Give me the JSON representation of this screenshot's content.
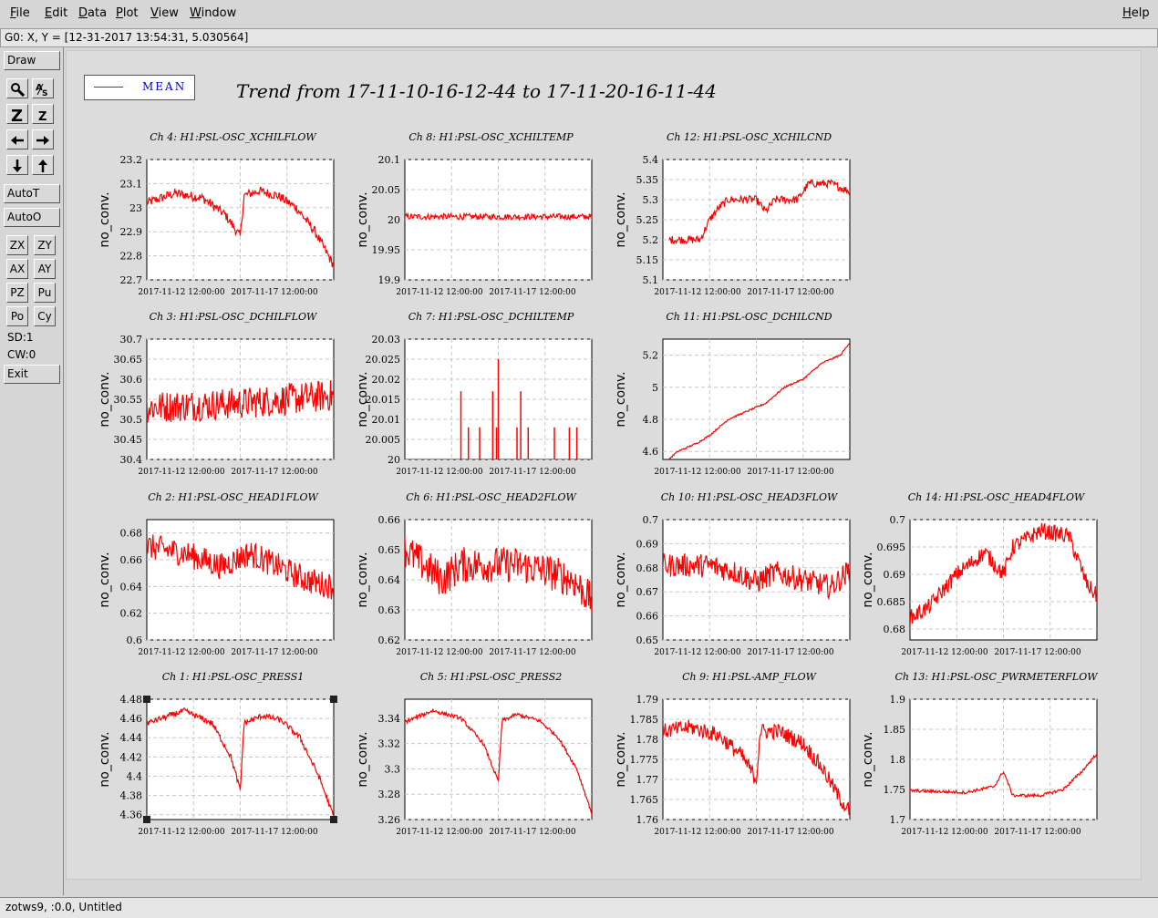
{
  "menu": {
    "items": [
      "File",
      "Edit",
      "Data",
      "Plot",
      "View",
      "Window"
    ],
    "help": "Help"
  },
  "coord_readout": "G0: X, Y = [12-31-2017 13:54:31, 5.030564]",
  "toolbar": {
    "draw": "Draw",
    "autot": "AutoT",
    "autoo": "AutoO",
    "small": [
      "ZX",
      "ZY",
      "AX",
      "AY",
      "PZ",
      "Pu",
      "Po",
      "Cy"
    ],
    "sd": "SD:1",
    "cw": "CW:0",
    "exit": "Exit"
  },
  "legend": {
    "label": "MEAN",
    "color": "#ff0000"
  },
  "title": "Trend from 17-11-10-16-12-44 to 17-11-20-16-11-44",
  "status": "zotws9, :0.0, Untitled",
  "x_ticks": [
    "2017-11-12 12:00:00",
    "2017-11-17 12:00:00"
  ],
  "chart_data": [
    {
      "type": "line",
      "title": "Ch 4: H1:PSL-OSC_XCHILFLOW",
      "ylabel": "no_conv.",
      "ylim": [
        22.7,
        23.2
      ],
      "yticks": [
        "23.2",
        "23.1",
        "23",
        "22.9",
        "22.8",
        "22.7"
      ],
      "points": [
        [
          0,
          23.02
        ],
        [
          0.15,
          23.06
        ],
        [
          0.3,
          23.04
        ],
        [
          0.42,
          22.97
        ],
        [
          0.5,
          22.88
        ],
        [
          0.52,
          23.05
        ],
        [
          0.6,
          23.07
        ],
        [
          0.7,
          23.05
        ],
        [
          0.8,
          23.0
        ],
        [
          0.9,
          22.9
        ],
        [
          1.0,
          22.76
        ]
      ],
      "band": 0.04
    },
    {
      "type": "line",
      "title": "Ch 8: H1:PSL-OSC_XCHILTEMP",
      "ylabel": "no_conv.",
      "ylim": [
        19.9,
        20.1
      ],
      "yticks": [
        "20.1",
        "20.05",
        "20",
        "19.95",
        "19.9"
      ],
      "points": [
        [
          0,
          20.005
        ],
        [
          0.5,
          20.005
        ],
        [
          1.0,
          20.005
        ]
      ],
      "band": 0.01
    },
    {
      "type": "line",
      "title": "Ch 12: H1:PSL-OSC_XCHILCND",
      "ylabel": "no_conv.",
      "ylim": [
        5.1,
        5.4
      ],
      "yticks": [
        "5.4",
        "5.35",
        "5.3",
        "5.25",
        "5.2",
        "5.15",
        "5.1"
      ],
      "points": [
        [
          0.03,
          5.2
        ],
        [
          0.2,
          5.2
        ],
        [
          0.25,
          5.25
        ],
        [
          0.3,
          5.28
        ],
        [
          0.35,
          5.3
        ],
        [
          0.5,
          5.3
        ],
        [
          0.55,
          5.27
        ],
        [
          0.6,
          5.3
        ],
        [
          0.72,
          5.3
        ],
        [
          0.78,
          5.34
        ],
        [
          0.9,
          5.34
        ],
        [
          1.0,
          5.32
        ]
      ],
      "band": 0.02
    },
    {
      "type": "line",
      "title": "Ch 3: H1:PSL-OSC_DCHILFLOW",
      "ylabel": "no_conv.",
      "ylim": [
        30.4,
        30.7
      ],
      "yticks": [
        "30.7",
        "30.65",
        "30.6",
        "30.55",
        "30.5",
        "30.45",
        "30.4"
      ],
      "points": [
        [
          0,
          30.53
        ],
        [
          0.5,
          30.54
        ],
        [
          1.0,
          30.56
        ]
      ],
      "band": 0.08
    },
    {
      "type": "line",
      "title": "Ch 7: H1:PSL-OSC_DCHILTEMP",
      "ylabel": "no_conv.",
      "ylim": [
        20,
        20.03
      ],
      "yticks": [
        "20.03",
        "20.025",
        "20.02",
        "20.015",
        "20.01",
        "20.005",
        "20"
      ],
      "points": [
        [
          0,
          20
        ],
        [
          1.0,
          20
        ]
      ],
      "band": 0.0,
      "spikes": [
        [
          0.3,
          20.017
        ],
        [
          0.34,
          20.008
        ],
        [
          0.4,
          20.008
        ],
        [
          0.47,
          20.017
        ],
        [
          0.49,
          20.008
        ],
        [
          0.5,
          20.025
        ],
        [
          0.6,
          20.008
        ],
        [
          0.62,
          20.017
        ],
        [
          0.66,
          20.008
        ],
        [
          0.8,
          20.008
        ],
        [
          0.88,
          20.008
        ],
        [
          0.92,
          20.008
        ]
      ]
    },
    {
      "type": "line",
      "title": "Ch 11: H1:PSL-OSC_DCHILCND",
      "ylabel": "no_conv.",
      "ylim": [
        4.55,
        5.3
      ],
      "yticks": [
        "5.2",
        "5",
        "4.8",
        "4.6"
      ],
      "points": [
        [
          0.03,
          4.55
        ],
        [
          0.08,
          4.6
        ],
        [
          0.18,
          4.65
        ],
        [
          0.25,
          4.7
        ],
        [
          0.35,
          4.8
        ],
        [
          0.45,
          4.85
        ],
        [
          0.55,
          4.9
        ],
        [
          0.65,
          5.0
        ],
        [
          0.75,
          5.05
        ],
        [
          0.85,
          5.15
        ],
        [
          0.95,
          5.2
        ],
        [
          1.0,
          5.28
        ]
      ],
      "band": 0.01
    },
    {
      "type": "line",
      "title": "Ch 2: H1:PSL-OSC_HEAD1FLOW",
      "ylabel": "no_conv.",
      "ylim": [
        0.6,
        0.69
      ],
      "yticks": [
        "0.68",
        "0.66",
        "0.64",
        "0.62",
        "0.6"
      ],
      "points": [
        [
          0,
          0.67
        ],
        [
          0.2,
          0.665
        ],
        [
          0.4,
          0.655
        ],
        [
          0.55,
          0.665
        ],
        [
          0.7,
          0.655
        ],
        [
          0.85,
          0.645
        ],
        [
          1.0,
          0.64
        ]
      ],
      "band": 0.02
    },
    {
      "type": "line",
      "title": "Ch 6: H1:PSL-OSC_HEAD2FLOW",
      "ylabel": "no_conv.",
      "ylim": [
        0.62,
        0.66
      ],
      "yticks": [
        "0.66",
        "0.65",
        "0.64",
        "0.63",
        "0.62"
      ],
      "points": [
        [
          0,
          0.65
        ],
        [
          0.1,
          0.645
        ],
        [
          0.2,
          0.64
        ],
        [
          0.3,
          0.645
        ],
        [
          0.45,
          0.645
        ],
        [
          0.6,
          0.645
        ],
        [
          0.75,
          0.643
        ],
        [
          0.9,
          0.64
        ],
        [
          1.0,
          0.633
        ]
      ],
      "band": 0.012
    },
    {
      "type": "line",
      "title": "Ch 10: H1:PSL-OSC_HEAD3FLOW",
      "ylabel": "no_conv.",
      "ylim": [
        0.65,
        0.7
      ],
      "yticks": [
        "0.7",
        "0.69",
        "0.68",
        "0.67",
        "0.66",
        "0.65"
      ],
      "points": [
        [
          0,
          0.681
        ],
        [
          0.25,
          0.681
        ],
        [
          0.4,
          0.678
        ],
        [
          0.5,
          0.674
        ],
        [
          0.6,
          0.678
        ],
        [
          0.75,
          0.675
        ],
        [
          0.9,
          0.672
        ],
        [
          1.0,
          0.679
        ]
      ],
      "band": 0.01
    },
    {
      "type": "line",
      "title": "Ch 14: H1:PSL-OSC_HEAD4FLOW",
      "ylabel": "no_conv.",
      "ylim": [
        0.678,
        0.7
      ],
      "yticks": [
        "0.7",
        "0.695",
        "0.69",
        "0.685",
        "0.68"
      ],
      "points": [
        [
          0,
          0.682
        ],
        [
          0.1,
          0.684
        ],
        [
          0.25,
          0.69
        ],
        [
          0.4,
          0.694
        ],
        [
          0.5,
          0.69
        ],
        [
          0.55,
          0.695
        ],
        [
          0.7,
          0.698
        ],
        [
          0.85,
          0.697
        ],
        [
          0.95,
          0.688
        ],
        [
          1.0,
          0.686
        ]
      ],
      "band": 0.003
    },
    {
      "type": "line",
      "title": "Ch 1: H1:PSL-OSC_PRESS1",
      "ylabel": "no_conv.",
      "ylim": [
        4.355,
        4.48
      ],
      "yticks": [
        "4.48",
        "4.46",
        "4.44",
        "4.42",
        "4.4",
        "4.38",
        "4.36"
      ],
      "points": [
        [
          0,
          4.455
        ],
        [
          0.2,
          4.468
        ],
        [
          0.35,
          4.455
        ],
        [
          0.45,
          4.42
        ],
        [
          0.5,
          4.385
        ],
        [
          0.52,
          4.455
        ],
        [
          0.62,
          4.463
        ],
        [
          0.72,
          4.458
        ],
        [
          0.82,
          4.44
        ],
        [
          0.92,
          4.4
        ],
        [
          1.0,
          4.358
        ]
      ],
      "band": 0.006
    },
    {
      "type": "line",
      "title": "Ch 5: H1:PSL-OSC_PRESS2",
      "ylabel": "no_conv.",
      "ylim": [
        3.26,
        3.355
      ],
      "yticks": [
        "3.34",
        "3.32",
        "3.3",
        "3.28",
        "3.26"
      ],
      "points": [
        [
          0,
          3.337
        ],
        [
          0.15,
          3.346
        ],
        [
          0.3,
          3.34
        ],
        [
          0.42,
          3.32
        ],
        [
          0.5,
          3.29
        ],
        [
          0.52,
          3.338
        ],
        [
          0.6,
          3.343
        ],
        [
          0.72,
          3.338
        ],
        [
          0.82,
          3.325
        ],
        [
          0.92,
          3.3
        ],
        [
          1.0,
          3.265
        ]
      ],
      "band": 0.003
    },
    {
      "type": "line",
      "title": "Ch 9: H1:PSL-AMP_FLOW",
      "ylabel": "no_conv.",
      "ylim": [
        1.76,
        1.79
      ],
      "yticks": [
        "1.79",
        "1.785",
        "1.78",
        "1.775",
        "1.77",
        "1.765",
        "1.76"
      ],
      "points": [
        [
          0,
          1.782
        ],
        [
          0.15,
          1.783
        ],
        [
          0.3,
          1.781
        ],
        [
          0.42,
          1.776
        ],
        [
          0.5,
          1.77
        ],
        [
          0.52,
          1.782
        ],
        [
          0.62,
          1.782
        ],
        [
          0.75,
          1.779
        ],
        [
          0.85,
          1.773
        ],
        [
          0.95,
          1.765
        ],
        [
          1.0,
          1.762
        ]
      ],
      "band": 0.004
    },
    {
      "type": "line",
      "title": "Ch 13: H1:PSL-OSC_PWRMETERFLOW",
      "ylabel": "no_conv.",
      "ylim": [
        1.7,
        1.9
      ],
      "yticks": [
        "1.9",
        "1.85",
        "1.8",
        "1.75",
        "1.7"
      ],
      "points": [
        [
          0,
          1.748
        ],
        [
          0.3,
          1.745
        ],
        [
          0.45,
          1.755
        ],
        [
          0.5,
          1.78
        ],
        [
          0.55,
          1.74
        ],
        [
          0.7,
          1.74
        ],
        [
          0.82,
          1.75
        ],
        [
          0.92,
          1.78
        ],
        [
          1.0,
          1.81
        ]
      ],
      "band": 0.005
    }
  ]
}
